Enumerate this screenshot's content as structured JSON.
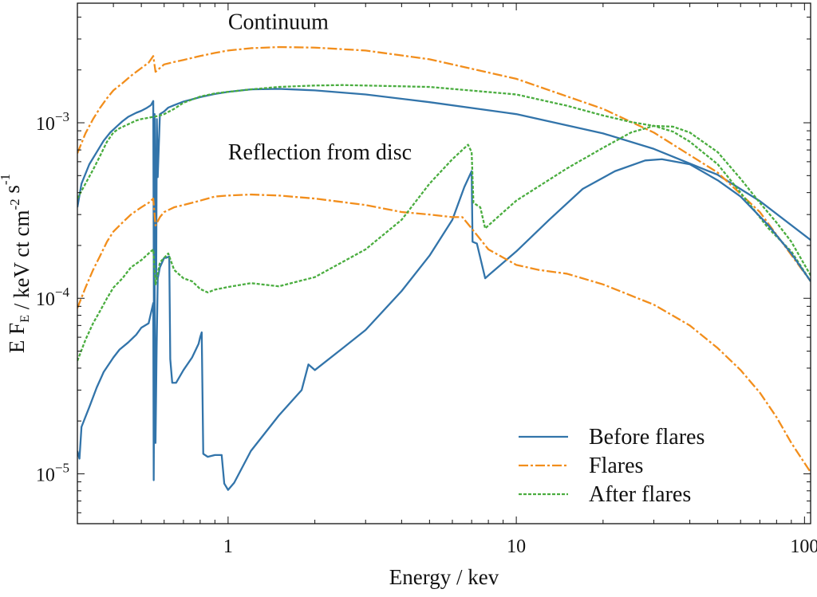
{
  "chart_data": {
    "type": "line",
    "xscale": "log",
    "yscale": "log",
    "xlim": [
      0.3,
      105
    ],
    "ylim": [
      5.2e-06,
      0.0048
    ],
    "xlabel": "Energy / kev",
    "ylabel": {
      "parts": [
        {
          "t": "E F"
        },
        {
          "t": "E",
          "shift": "sub"
        },
        {
          "t": " / keV ct cm"
        },
        {
          "t": "-2",
          "shift": "super"
        },
        {
          "t": " s"
        },
        {
          "t": "-1",
          "shift": "super"
        }
      ]
    },
    "x_ticks": [
      {
        "value": 1,
        "label": "1"
      },
      {
        "value": 10,
        "label": "10"
      },
      {
        "value": 100,
        "label": "100"
      }
    ],
    "y_ticks": [
      {
        "value": 1e-05,
        "base": "10",
        "exp": "−5"
      },
      {
        "value": 0.0001,
        "base": "10",
        "exp": "−4"
      },
      {
        "value": 0.001,
        "base": "10",
        "exp": "−3"
      }
    ],
    "grid": false,
    "legend_position": "bottom-right",
    "annotations": [
      {
        "text": "Continuum",
        "x": 1.0,
        "y": 0.0038
      },
      {
        "text": "Reflection from disc",
        "x": 1.0,
        "y": 0.000685
      }
    ],
    "series": [
      {
        "name": "Before flares",
        "component": "continuum",
        "color": "#3274aa",
        "dash": "",
        "points": [
          [
            0.3,
            0.00033
          ],
          [
            0.31,
            0.00045
          ],
          [
            0.33,
            0.00058
          ],
          [
            0.35,
            0.00068
          ],
          [
            0.37,
            0.00079
          ],
          [
            0.39,
            0.00088
          ],
          [
            0.41,
            0.00095
          ],
          [
            0.43,
            0.00102
          ],
          [
            0.45,
            0.00108
          ],
          [
            0.48,
            0.00114
          ],
          [
            0.5,
            0.00117
          ],
          [
            0.52,
            0.00121
          ],
          [
            0.54,
            0.00126
          ],
          [
            0.55,
            0.00133
          ],
          [
            0.553,
            6.8e-05
          ],
          [
            0.556,
            0.00112
          ],
          [
            0.56,
            0.00026
          ],
          [
            0.563,
            0.000129
          ],
          [
            0.566,
            0.00105
          ],
          [
            0.57,
            0.00049
          ],
          [
            0.58,
            0.00112
          ],
          [
            0.6,
            0.00116
          ],
          [
            0.62,
            0.00122
          ],
          [
            0.65,
            0.00126
          ],
          [
            0.7,
            0.00132
          ],
          [
            0.75,
            0.00136
          ],
          [
            0.8,
            0.0014
          ],
          [
            0.9,
            0.00146
          ],
          [
            1.0,
            0.0015
          ],
          [
            1.2,
            0.00155
          ],
          [
            1.5,
            0.00156
          ],
          [
            2.0,
            0.00153
          ],
          [
            3.0,
            0.00145
          ],
          [
            5.0,
            0.00131
          ],
          [
            10.0,
            0.00112
          ],
          [
            20.0,
            0.00087
          ],
          [
            30.0,
            0.00071
          ],
          [
            50.0,
            0.000505
          ],
          [
            70.0,
            0.000358
          ],
          [
            105.0,
            0.000215
          ]
        ]
      },
      {
        "name": "Flares",
        "component": "continuum",
        "color": "#f28e1c",
        "dash": "12 3 3 3",
        "points": [
          [
            0.3,
            0.00067
          ],
          [
            0.32,
            0.00087
          ],
          [
            0.34,
            0.00105
          ],
          [
            0.36,
            0.00122
          ],
          [
            0.38,
            0.00138
          ],
          [
            0.4,
            0.00153
          ],
          [
            0.43,
            0.00168
          ],
          [
            0.46,
            0.00185
          ],
          [
            0.5,
            0.00205
          ],
          [
            0.53,
            0.0022
          ],
          [
            0.55,
            0.0024
          ],
          [
            0.56,
            0.00195
          ],
          [
            0.58,
            0.00205
          ],
          [
            0.6,
            0.00215
          ],
          [
            0.65,
            0.00222
          ],
          [
            0.7,
            0.00228
          ],
          [
            0.8,
            0.0024
          ],
          [
            0.9,
            0.0025
          ],
          [
            1.0,
            0.00258
          ],
          [
            1.2,
            0.00266
          ],
          [
            1.5,
            0.0027
          ],
          [
            2.0,
            0.00268
          ],
          [
            3.0,
            0.00258
          ],
          [
            5.0,
            0.0023
          ],
          [
            10.0,
            0.00178
          ],
          [
            20.0,
            0.0012
          ],
          [
            30.0,
            0.00088
          ],
          [
            50.0,
            0.00052
          ],
          [
            70.0,
            0.00031
          ],
          [
            105.0,
            0.000125
          ]
        ]
      },
      {
        "name": "After flares",
        "component": "continuum",
        "color": "#4aad3f",
        "dash": "4 2",
        "points": [
          [
            0.3,
            0.00037
          ],
          [
            0.32,
            0.00045
          ],
          [
            0.34,
            0.00054
          ],
          [
            0.36,
            0.00065
          ],
          [
            0.38,
            0.00078
          ],
          [
            0.4,
            0.00088
          ],
          [
            0.42,
            0.00093
          ],
          [
            0.45,
            0.00098
          ],
          [
            0.48,
            0.00103
          ],
          [
            0.5,
            0.00105
          ],
          [
            0.55,
            0.00108
          ],
          [
            0.58,
            0.0011
          ],
          [
            0.6,
            0.00112
          ],
          [
            0.65,
            0.0012
          ],
          [
            0.7,
            0.0013
          ],
          [
            0.8,
            0.00141
          ],
          [
            0.9,
            0.00147
          ],
          [
            1.0,
            0.0015
          ],
          [
            1.2,
            0.00155
          ],
          [
            1.5,
            0.0016
          ],
          [
            2.0,
            0.00163
          ],
          [
            2.5,
            0.00164
          ],
          [
            3.0,
            0.00163
          ],
          [
            5.0,
            0.0016
          ],
          [
            10.0,
            0.00145
          ],
          [
            15.0,
            0.00125
          ],
          [
            20.0,
            0.0011
          ],
          [
            25.0,
            0.00101
          ],
          [
            30.0,
            0.00096
          ],
          [
            35.0,
            0.00089
          ],
          [
            40.0,
            0.00078
          ],
          [
            50.0,
            0.00058
          ],
          [
            60.0,
            0.0004
          ],
          [
            75.0,
            0.00025
          ],
          [
            90.0,
            0.000185
          ],
          [
            105.0,
            0.000125
          ]
        ]
      },
      {
        "name": "Before flares",
        "component": "reflection",
        "color": "#3274aa",
        "dash": "",
        "points": [
          [
            0.3,
            1.35e-05
          ],
          [
            0.305,
            1.22e-05
          ],
          [
            0.31,
            1.85e-05
          ],
          [
            0.33,
            2.4e-05
          ],
          [
            0.35,
            3.1e-05
          ],
          [
            0.37,
            3.8e-05
          ],
          [
            0.4,
            4.6e-05
          ],
          [
            0.42,
            5.1e-05
          ],
          [
            0.45,
            5.6e-05
          ],
          [
            0.48,
            6.2e-05
          ],
          [
            0.5,
            6.8e-05
          ],
          [
            0.53,
            7.2e-05
          ],
          [
            0.55,
            9.4e-05
          ],
          [
            0.552,
            9.2e-06
          ],
          [
            0.556,
            0.000125
          ],
          [
            0.56,
            1.5e-05
          ],
          [
            0.565,
            5.2e-05
          ],
          [
            0.57,
            0.00013
          ],
          [
            0.58,
            0.00015
          ],
          [
            0.6,
            0.00017
          ],
          [
            0.61,
            0.00017
          ],
          [
            0.625,
            0.000173
          ],
          [
            0.63,
            4.5e-05
          ],
          [
            0.64,
            3.3e-05
          ],
          [
            0.66,
            3.3e-05
          ],
          [
            0.7,
            3.9e-05
          ],
          [
            0.75,
            4.6e-05
          ],
          [
            0.79,
            5.5e-05
          ],
          [
            0.8,
            6e-05
          ],
          [
            0.81,
            6.4e-05
          ],
          [
            0.82,
            1.3e-05
          ],
          [
            0.85,
            1.25e-05
          ],
          [
            0.9,
            1.28e-05
          ],
          [
            0.95,
            1.28e-05
          ],
          [
            0.97,
            8.8e-06
          ],
          [
            1.0,
            8.1e-06
          ],
          [
            1.05,
            8.9e-06
          ],
          [
            1.2,
            1.35e-05
          ],
          [
            1.5,
            2.15e-05
          ],
          [
            1.8,
            3e-05
          ],
          [
            1.9,
            4.2e-05
          ],
          [
            2.0,
            3.9e-05
          ],
          [
            2.5,
            5.2e-05
          ],
          [
            3.0,
            6.6e-05
          ],
          [
            4.0,
            0.00011
          ],
          [
            5.0,
            0.000175
          ],
          [
            6.0,
            0.00028
          ],
          [
            6.6,
            0.00043
          ],
          [
            7.0,
            0.00053
          ],
          [
            7.05,
            0.00021
          ],
          [
            7.3,
            0.000205
          ],
          [
            7.8,
            0.00013
          ],
          [
            8.0,
            0.000135
          ],
          [
            10.0,
            0.000185
          ],
          [
            13.0,
            0.00028
          ],
          [
            17.0,
            0.00042
          ],
          [
            22.0,
            0.00053
          ],
          [
            28.0,
            0.00061
          ],
          [
            32.0,
            0.00062
          ],
          [
            40.0,
            0.00058
          ],
          [
            50.0,
            0.00047
          ],
          [
            60.0,
            0.00038
          ],
          [
            75.0,
            0.00026
          ],
          [
            90.0,
            0.00018
          ],
          [
            105.0,
            0.000125
          ]
        ]
      },
      {
        "name": "Flares",
        "component": "reflection",
        "color": "#f28e1c",
        "dash": "12 3 3 3",
        "points": [
          [
            0.3,
            8.8e-05
          ],
          [
            0.32,
            0.000115
          ],
          [
            0.34,
            0.000145
          ],
          [
            0.36,
            0.000175
          ],
          [
            0.38,
            0.00021
          ],
          [
            0.4,
            0.00024
          ],
          [
            0.43,
            0.00027
          ],
          [
            0.46,
            0.0003
          ],
          [
            0.5,
            0.00033
          ],
          [
            0.53,
            0.00035
          ],
          [
            0.55,
            0.00037
          ],
          [
            0.56,
            0.00026
          ],
          [
            0.58,
            0.00029
          ],
          [
            0.6,
            0.00031
          ],
          [
            0.65,
            0.00033
          ],
          [
            0.7,
            0.00034
          ],
          [
            0.8,
            0.00036
          ],
          [
            0.9,
            0.00038
          ],
          [
            1.0,
            0.000385
          ],
          [
            1.2,
            0.00039
          ],
          [
            1.5,
            0.000385
          ],
          [
            2.0,
            0.00037
          ],
          [
            3.0,
            0.00034
          ],
          [
            4.0,
            0.00031
          ],
          [
            5.0,
            0.0003
          ],
          [
            6.0,
            0.00029
          ],
          [
            6.5,
            0.00029
          ],
          [
            7.0,
            0.00025
          ],
          [
            8.0,
            0.00019
          ],
          [
            10.0,
            0.000155
          ],
          [
            12.0,
            0.000145
          ],
          [
            15.0,
            0.000138
          ],
          [
            20.0,
            0.00012
          ],
          [
            30.0,
            9.2e-05
          ],
          [
            40.0,
            7e-05
          ],
          [
            50.0,
            5.2e-05
          ],
          [
            60.0,
            3.9e-05
          ],
          [
            70.0,
            2.9e-05
          ],
          [
            80.0,
            2.1e-05
          ],
          [
            90.0,
            1.5e-05
          ],
          [
            105.0,
            1.02e-05
          ]
        ]
      },
      {
        "name": "After flares",
        "component": "reflection",
        "color": "#4aad3f",
        "dash": "4 2",
        "points": [
          [
            0.3,
            4.4e-05
          ],
          [
            0.32,
            5.8e-05
          ],
          [
            0.34,
            7.2e-05
          ],
          [
            0.36,
            8.5e-05
          ],
          [
            0.38,
            0.0001
          ],
          [
            0.4,
            0.000115
          ],
          [
            0.43,
            0.00013
          ],
          [
            0.46,
            0.00015
          ],
          [
            0.5,
            0.000165
          ],
          [
            0.53,
            0.00018
          ],
          [
            0.55,
            0.00019
          ],
          [
            0.56,
            0.00012
          ],
          [
            0.58,
            0.00016
          ],
          [
            0.6,
            0.00017
          ],
          [
            0.62,
            0.00018
          ],
          [
            0.65,
            0.000145
          ],
          [
            0.7,
            0.00013
          ],
          [
            0.75,
            0.000125
          ],
          [
            0.8,
            0.000113
          ],
          [
            0.85,
            0.000108
          ],
          [
            0.9,
            0.000112
          ],
          [
            1.0,
            0.000116
          ],
          [
            1.2,
            0.000122
          ],
          [
            1.5,
            0.000117
          ],
          [
            2.0,
            0.000132
          ],
          [
            3.0,
            0.00019
          ],
          [
            4.0,
            0.00028
          ],
          [
            5.0,
            0.00045
          ],
          [
            6.0,
            0.00062
          ],
          [
            6.8,
            0.00075
          ],
          [
            7.0,
            0.00068
          ],
          [
            7.1,
            0.00035
          ],
          [
            7.5,
            0.00033
          ],
          [
            7.8,
            0.00025
          ],
          [
            8.0,
            0.00026
          ],
          [
            10.0,
            0.00036
          ],
          [
            15.0,
            0.00055
          ],
          [
            20.0,
            0.00072
          ],
          [
            25.0,
            0.00088
          ],
          [
            30.0,
            0.00096
          ],
          [
            35.0,
            0.00095
          ],
          [
            40.0,
            0.00088
          ],
          [
            50.0,
            0.00068
          ],
          [
            60.0,
            0.00048
          ],
          [
            70.0,
            0.00035
          ],
          [
            80.0,
            0.00027
          ],
          [
            90.0,
            0.00021
          ],
          [
            105.0,
            0.000135
          ]
        ]
      }
    ],
    "legend": [
      {
        "label": "Before flares",
        "color": "#3274aa",
        "dash": ""
      },
      {
        "label": "Flares",
        "color": "#f28e1c",
        "dash": "12 3 3 3"
      },
      {
        "label": "After flares",
        "color": "#4aad3f",
        "dash": "4 2"
      }
    ]
  }
}
